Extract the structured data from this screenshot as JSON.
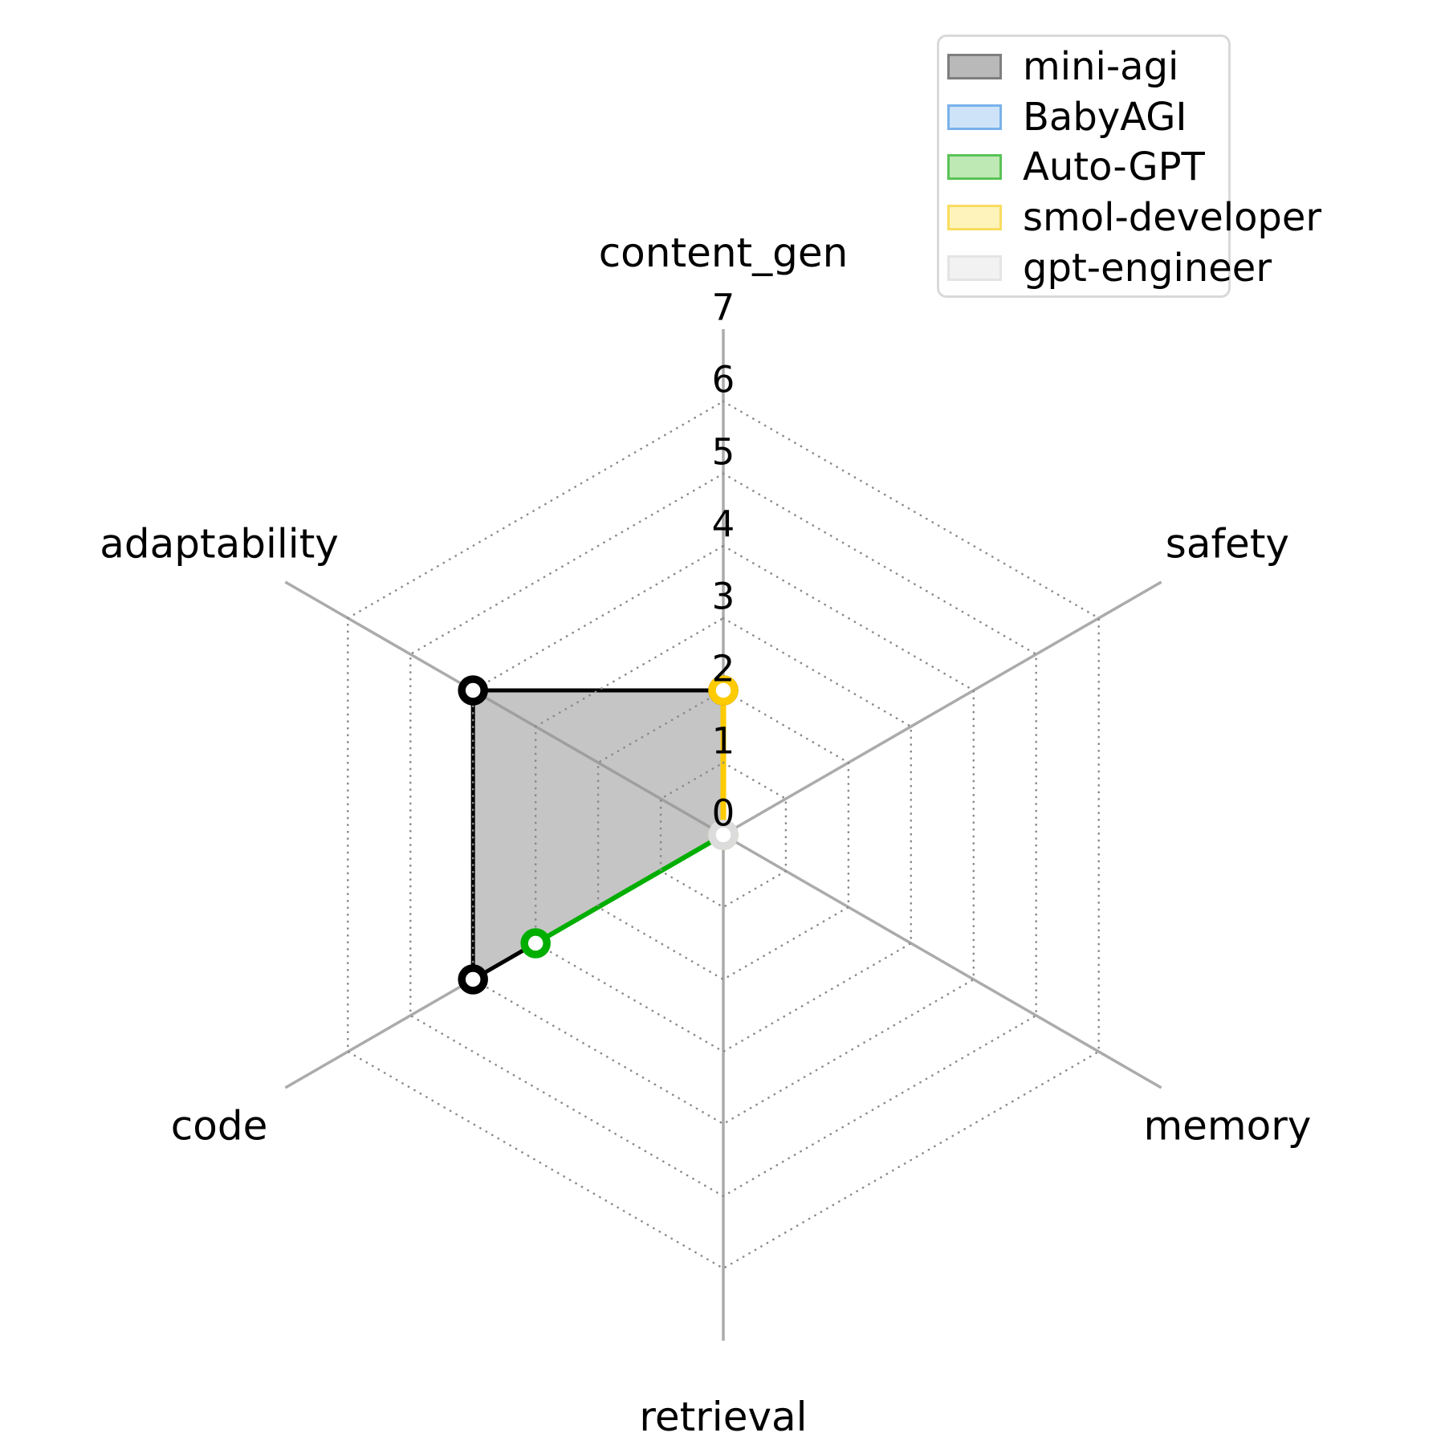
{
  "chart_data": {
    "type": "radar",
    "title": "",
    "categories": [
      "content_gen",
      "safety",
      "memory",
      "retrieval",
      "code",
      "adaptability"
    ],
    "r_ticks": [
      "0",
      "1",
      "2",
      "3",
      "4",
      "5",
      "6",
      "7"
    ],
    "r_max": 7,
    "grid": {
      "axis_color": "#ababab",
      "ring_color": "#8a8a8a",
      "rings_at": [
        1,
        2,
        3,
        4,
        5,
        6
      ],
      "ring_style": "dotted",
      "tick_label_color": "#000000",
      "category_label_color": "#000000"
    },
    "series": [
      {
        "name": "mini-agi",
        "values": [
          2,
          0,
          0,
          0,
          4,
          4
        ],
        "line_color": "#000000",
        "line_width": 5,
        "fill_color": "rgba(150,150,150,0.55)",
        "legend_fill": "#b9b9b9",
        "legend_edge": "#7e7e7e"
      },
      {
        "name": "BabyAGI",
        "values": [
          0,
          0,
          0,
          0,
          0,
          0
        ],
        "line_color": "#79b1eb",
        "line_width": 5,
        "fill_color": "rgba(121,177,235,0.30)",
        "legend_fill": "#cfe3f8",
        "legend_edge": "#79b1eb"
      },
      {
        "name": "Auto-GPT",
        "values": [
          0,
          0,
          0,
          0,
          3,
          0
        ],
        "line_color": "#00ae00",
        "line_width": 6,
        "fill_color": "rgba(0,174,0,0.25)",
        "legend_fill": "#bfe9b4",
        "legend_edge": "#59c356"
      },
      {
        "name": "smol-developer",
        "values": [
          2,
          0,
          0,
          0,
          0,
          0
        ],
        "line_color": "#fecb00",
        "line_width": 7,
        "fill_color": "rgba(255,215,0,0.28)",
        "legend_fill": "#fdf3bb",
        "legend_edge": "#f8dc60"
      },
      {
        "name": "gpt-engineer",
        "values": [
          0,
          0,
          0,
          0,
          0,
          0
        ],
        "line_color": "#dcdcdc",
        "line_width": 5,
        "fill_color": "rgba(211,211,211,0.30)",
        "legend_fill": "#f2f2f2",
        "legend_edge": "#e4e4e4"
      }
    ],
    "legend_position": "upper right",
    "marker": {
      "shape": "circle",
      "face_color": "#ffffff"
    }
  }
}
